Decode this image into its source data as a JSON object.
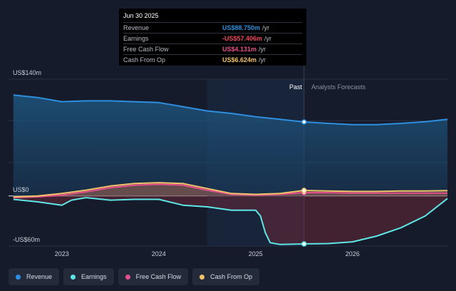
{
  "tooltip": {
    "date": "Jun 30 2025",
    "rows": [
      {
        "label": "Revenue",
        "value": "US$88.750m",
        "unit": "/yr",
        "color": "#2e8fe0"
      },
      {
        "label": "Earnings",
        "value": "-US$57.406m",
        "unit": "/yr",
        "color": "#ef4a5c"
      },
      {
        "label": "Free Cash Flow",
        "value": "US$4.131m",
        "unit": "/yr",
        "color": "#e8508c"
      },
      {
        "label": "Cash From Op",
        "value": "US$6.624m",
        "unit": "/yr",
        "color": "#f0c26a"
      }
    ]
  },
  "labels": {
    "past": "Past",
    "forecast": "Analysts Forecasts"
  },
  "legend": [
    {
      "label": "Revenue",
      "color": "#2e8fe0"
    },
    {
      "label": "Earnings",
      "color": "#5ee6e6"
    },
    {
      "label": "Free Cash Flow",
      "color": "#e8508c"
    },
    {
      "label": "Cash From Op",
      "color": "#f0c26a"
    }
  ],
  "chart_data": {
    "type": "area",
    "x_ticks": [
      "2023",
      "2024",
      "2025",
      "2026"
    ],
    "y_ticks": [
      "US$140m",
      "US$0",
      "-US$60m"
    ],
    "ylim": [
      -60,
      140
    ],
    "xlim": [
      2022.45,
      2026.98
    ],
    "divider_x": 2025.5,
    "shaded_past_from": 2024.5,
    "series": [
      {
        "name": "Revenue",
        "color": "#2e8fe0",
        "x": [
          2022.5,
          2022.75,
          2023.0,
          2023.25,
          2023.5,
          2023.75,
          2024.0,
          2024.25,
          2024.5,
          2024.75,
          2025.0,
          2025.25,
          2025.5,
          2025.75,
          2026.0,
          2026.25,
          2026.5,
          2026.75,
          2026.98
        ],
        "y": [
          121,
          118,
          113,
          114,
          114,
          113,
          112,
          107,
          102,
          99,
          95,
          92,
          88.75,
          87,
          85.5,
          85.5,
          87,
          89,
          92
        ]
      },
      {
        "name": "Earnings",
        "color": "#5ee6e6",
        "x": [
          2022.5,
          2022.75,
          2023.0,
          2023.1,
          2023.25,
          2023.5,
          2023.75,
          2024.0,
          2024.25,
          2024.5,
          2024.75,
          2025.0,
          2025.05,
          2025.1,
          2025.15,
          2025.25,
          2025.5,
          2025.75,
          2026.0,
          2026.25,
          2026.5,
          2026.75,
          2026.98
        ],
        "y": [
          -4,
          -7,
          -11,
          -5,
          -2,
          -5,
          -4,
          -4,
          -11,
          -13,
          -17,
          -17,
          -24,
          -44,
          -56,
          -58,
          -57.406,
          -57,
          -55,
          -48,
          -38,
          -24,
          -3
        ]
      },
      {
        "name": "Free Cash Flow",
        "color": "#e8508c",
        "x": [
          2022.5,
          2022.75,
          2023.0,
          2023.25,
          2023.5,
          2023.75,
          2024.0,
          2024.25,
          2024.5,
          2024.75,
          2025.0,
          2025.25,
          2025.5,
          2025.75,
          2026.0,
          2026.25,
          2026.5,
          2026.75,
          2026.98
        ],
        "y": [
          -2,
          -1,
          1,
          5,
          10,
          13,
          14,
          13,
          7,
          2,
          1,
          2,
          4.131,
          4,
          3.5,
          3.5,
          3.5,
          3.5,
          3.5
        ]
      },
      {
        "name": "Cash From Op",
        "color": "#f0c26a",
        "x": [
          2022.5,
          2022.75,
          2023.0,
          2023.25,
          2023.5,
          2023.75,
          2024.0,
          2024.25,
          2024.5,
          2024.75,
          2025.0,
          2025.25,
          2025.5,
          2025.75,
          2026.0,
          2026.25,
          2026.5,
          2026.75,
          2026.98
        ],
        "y": [
          -1,
          0,
          3,
          7,
          12,
          15,
          16,
          15,
          9,
          3,
          2,
          3,
          6.624,
          6,
          5.5,
          5.5,
          6,
          6,
          6.5
        ]
      }
    ]
  }
}
